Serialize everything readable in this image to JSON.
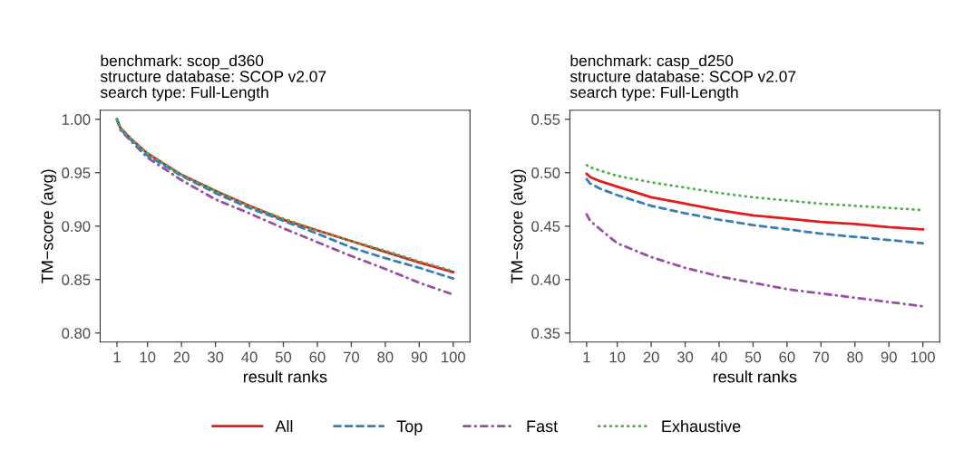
{
  "chart_data": [
    {
      "type": "line",
      "title": "benchmark: scop_d360\nstructure database: SCOP v2.07\nsearch type: Full-Length",
      "xlabel": "result ranks",
      "ylabel": "TM−score (avg)",
      "xlim": [
        -3.95,
        104.95
      ],
      "xticks": [
        1,
        10,
        20,
        30,
        40,
        50,
        60,
        70,
        80,
        90,
        100
      ],
      "ylim": [
        0.7916,
        1.0084
      ],
      "yticks": [
        {
          "value": 0.8,
          "label": "0.80"
        },
        {
          "value": 0.85,
          "label": "0.85"
        },
        {
          "value": 0.9,
          "label": "0.90"
        },
        {
          "value": 0.95,
          "label": "0.95"
        },
        {
          "value": 1.0,
          "label": "1.00"
        }
      ],
      "x": [
        1,
        2,
        5,
        10,
        20,
        30,
        40,
        50,
        60,
        70,
        80,
        90,
        100
      ],
      "grid": false,
      "legend": "bottom",
      "marker": "none",
      "series": [
        {
          "name": "All",
          "color": "#e41a1c",
          "line_style": "solid",
          "values": [
            1.0,
            0.992,
            0.982,
            0.968,
            0.948,
            0.933,
            0.919,
            0.906,
            0.896,
            0.886,
            0.876,
            0.866,
            0.857
          ]
        },
        {
          "name": "Top",
          "color": "#377eb8",
          "line_style": "dashed",
          "values": [
            1.0,
            0.991,
            0.981,
            0.966,
            0.947,
            0.931,
            0.917,
            0.905,
            0.893,
            0.88,
            0.87,
            0.861,
            0.851
          ]
        },
        {
          "name": "Fast",
          "color": "#984ea3",
          "line_style": "dashdot",
          "values": [
            1.0,
            0.99,
            0.98,
            0.964,
            0.943,
            0.925,
            0.912,
            0.898,
            0.885,
            0.872,
            0.86,
            0.847,
            0.836
          ]
        },
        {
          "name": "Exhaustive",
          "color": "#4daf4a",
          "line_style": "dotted",
          "values": [
            1.0,
            0.992,
            0.982,
            0.968,
            0.948,
            0.933,
            0.919,
            0.907,
            0.896,
            0.886,
            0.877,
            0.867,
            0.858
          ]
        }
      ]
    },
    {
      "type": "line",
      "title": "benchmark: casp_d250\nstructure database: SCOP v2.07\nsearch type: Full-Length",
      "xlabel": "result ranks",
      "ylabel": "TM−score (avg)",
      "xlim": [
        -3.95,
        104.95
      ],
      "xticks": [
        1,
        10,
        20,
        30,
        40,
        50,
        60,
        70,
        80,
        90,
        100
      ],
      "ylim": [
        0.3416,
        0.5584
      ],
      "yticks": [
        {
          "value": 0.35,
          "label": "0.35"
        },
        {
          "value": 0.4,
          "label": "0.40"
        },
        {
          "value": 0.45,
          "label": "0.45"
        },
        {
          "value": 0.5,
          "label": "0.50"
        },
        {
          "value": 0.55,
          "label": "0.55"
        }
      ],
      "x": [
        1,
        2,
        5,
        10,
        20,
        30,
        40,
        50,
        60,
        70,
        80,
        90,
        100
      ],
      "grid": false,
      "marker": "none",
      "series": [
        {
          "color": "#e41a1c",
          "line_style": "solid",
          "values": [
            0.499,
            0.496,
            0.492,
            0.487,
            0.477,
            0.471,
            0.465,
            0.46,
            0.457,
            0.454,
            0.452,
            0.449,
            0.447
          ]
        },
        {
          "color": "#377eb8",
          "line_style": "dashed",
          "values": [
            0.494,
            0.49,
            0.485,
            0.479,
            0.469,
            0.462,
            0.456,
            0.451,
            0.447,
            0.443,
            0.44,
            0.437,
            0.434
          ]
        },
        {
          "color": "#984ea3",
          "line_style": "dashdot",
          "values": [
            0.461,
            0.455,
            0.447,
            0.434,
            0.421,
            0.411,
            0.403,
            0.397,
            0.391,
            0.387,
            0.383,
            0.379,
            0.375
          ]
        },
        {
          "color": "#4daf4a",
          "line_style": "dotted",
          "values": [
            0.507,
            0.505,
            0.502,
            0.497,
            0.491,
            0.486,
            0.481,
            0.477,
            0.474,
            0.471,
            0.469,
            0.467,
            0.465
          ]
        }
      ]
    }
  ]
}
